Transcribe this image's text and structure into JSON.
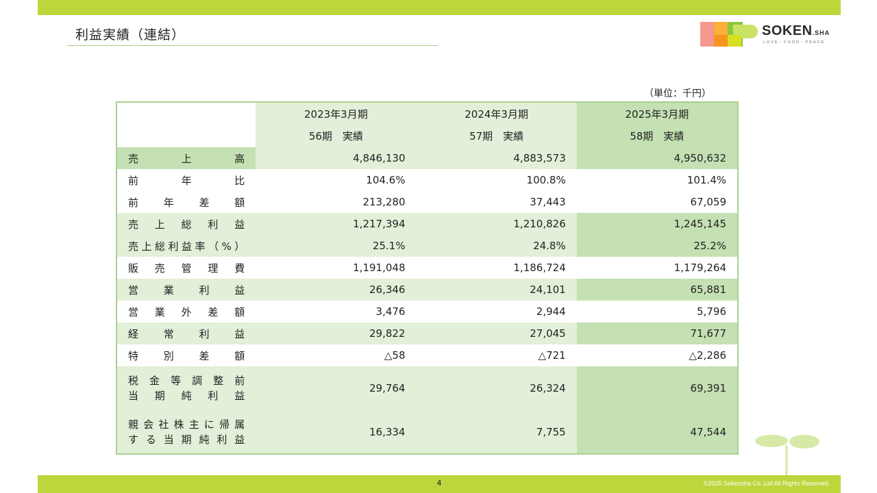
{
  "header": {
    "title": "利益実績（連結）"
  },
  "logo": {
    "name": "SOKEN",
    "suffix": ".SHA",
    "tagline": "LOVE・FOOD・PEACE"
  },
  "unit": "（単位：千円）",
  "columns": [
    {
      "period": "2023年3月期",
      "term": "56期　実績"
    },
    {
      "period": "2024年3月期",
      "term": "57期　実績"
    },
    {
      "period": "2025年3月期",
      "term": "58期　実績"
    }
  ],
  "rows": [
    {
      "label": "売上高",
      "values": [
        "4,846,130",
        "4,883,573",
        "4,950,632"
      ]
    },
    {
      "label": "前年比",
      "values": [
        "104.6%",
        "100.8%",
        "101.4%"
      ]
    },
    {
      "label": "前年差額",
      "values": [
        "213,280",
        "37,443",
        "67,059"
      ]
    },
    {
      "label": "売上総利益",
      "values": [
        "1,217,394",
        "1,210,826",
        "1,245,145"
      ]
    },
    {
      "label": "売上総利益率（%）",
      "values": [
        "25.1%",
        "24.8%",
        "25.2%"
      ]
    },
    {
      "label": "販売管理費",
      "values": [
        "1,191,048",
        "1,186,724",
        "1,179,264"
      ]
    },
    {
      "label": "営業利益",
      "values": [
        "26,346",
        "24,101",
        "65,881"
      ]
    },
    {
      "label": "営業外差額",
      "values": [
        "3,476",
        "2,944",
        "5,796"
      ]
    },
    {
      "label": "経常利益",
      "values": [
        "29,822",
        "27,045",
        "71,677"
      ]
    },
    {
      "label": "特別差額",
      "values": [
        "△58",
        "△721",
        "△2,286"
      ]
    },
    {
      "label_line1": "税金等調整前",
      "label_line2": "当期純利益",
      "values": [
        "29,764",
        "26,324",
        "69,391"
      ]
    },
    {
      "label_line1": "親会社株主に帰属",
      "label_line2": "する当期純利益",
      "values": [
        "16,334",
        "7,755",
        "47,544"
      ]
    }
  ],
  "footer": {
    "page_number": "4",
    "copyright": "©2025 Sokensha Co.,Ltd All Rights Reserved."
  },
  "colors": {
    "accent_bar": "#bcd63c",
    "table_dark": "#c5e0b3",
    "table_light": "#e2efd9"
  }
}
